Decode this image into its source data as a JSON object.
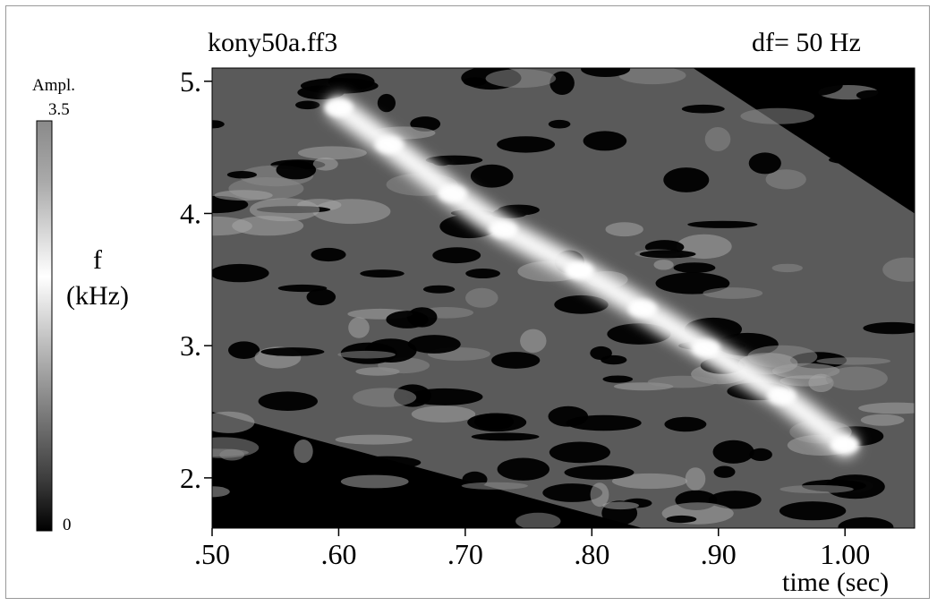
{
  "chart_data": {
    "type": "heatmap",
    "title": "kony50a.ff3",
    "resolution_label": "df= 50   Hz",
    "xlabel": "time (sec)",
    "ylabel_line1": "f",
    "ylabel_line2": "(kHz)",
    "xlim": [
      0.5,
      1.055
    ],
    "ylim": [
      1.62,
      5.1
    ],
    "x_ticks": [
      0.5,
      0.6,
      0.7,
      0.8,
      0.9,
      1.0
    ],
    "x_tick_labels": [
      ".50",
      ".60",
      ".70",
      ".80",
      ".90",
      "1.00"
    ],
    "y_ticks": [
      2.0,
      3.0,
      4.0,
      5.0
    ],
    "y_tick_labels": [
      "2.",
      "3.",
      "4.",
      "5."
    ],
    "colorbar": {
      "label": "Ampl.",
      "max_label": "3.5",
      "min_label": "0",
      "range": [
        0,
        3.5
      ]
    },
    "ridge": [
      {
        "t": 0.6,
        "f": 4.8,
        "a": 3.4
      },
      {
        "t": 0.64,
        "f": 4.52,
        "a": 3.3
      },
      {
        "t": 0.69,
        "f": 4.15,
        "a": 3.2
      },
      {
        "t": 0.73,
        "f": 3.88,
        "a": 3.3
      },
      {
        "t": 0.79,
        "f": 3.57,
        "a": 3.5
      },
      {
        "t": 0.84,
        "f": 3.28,
        "a": 3.3
      },
      {
        "t": 0.89,
        "f": 2.98,
        "a": 3.3
      },
      {
        "t": 0.95,
        "f": 2.62,
        "a": 3.2
      },
      {
        "t": 1.0,
        "f": 2.25,
        "a": 3.4
      }
    ],
    "data_extent_polygon": [
      [
        0.5,
        5.1
      ],
      [
        0.88,
        5.1
      ],
      [
        1.055,
        4.0
      ],
      [
        1.055,
        1.62
      ],
      [
        0.84,
        1.62
      ],
      [
        0.5,
        2.5
      ]
    ],
    "colors": {
      "background": "#000000",
      "low": "#4a4a4a",
      "high": "#ffffff"
    }
  }
}
